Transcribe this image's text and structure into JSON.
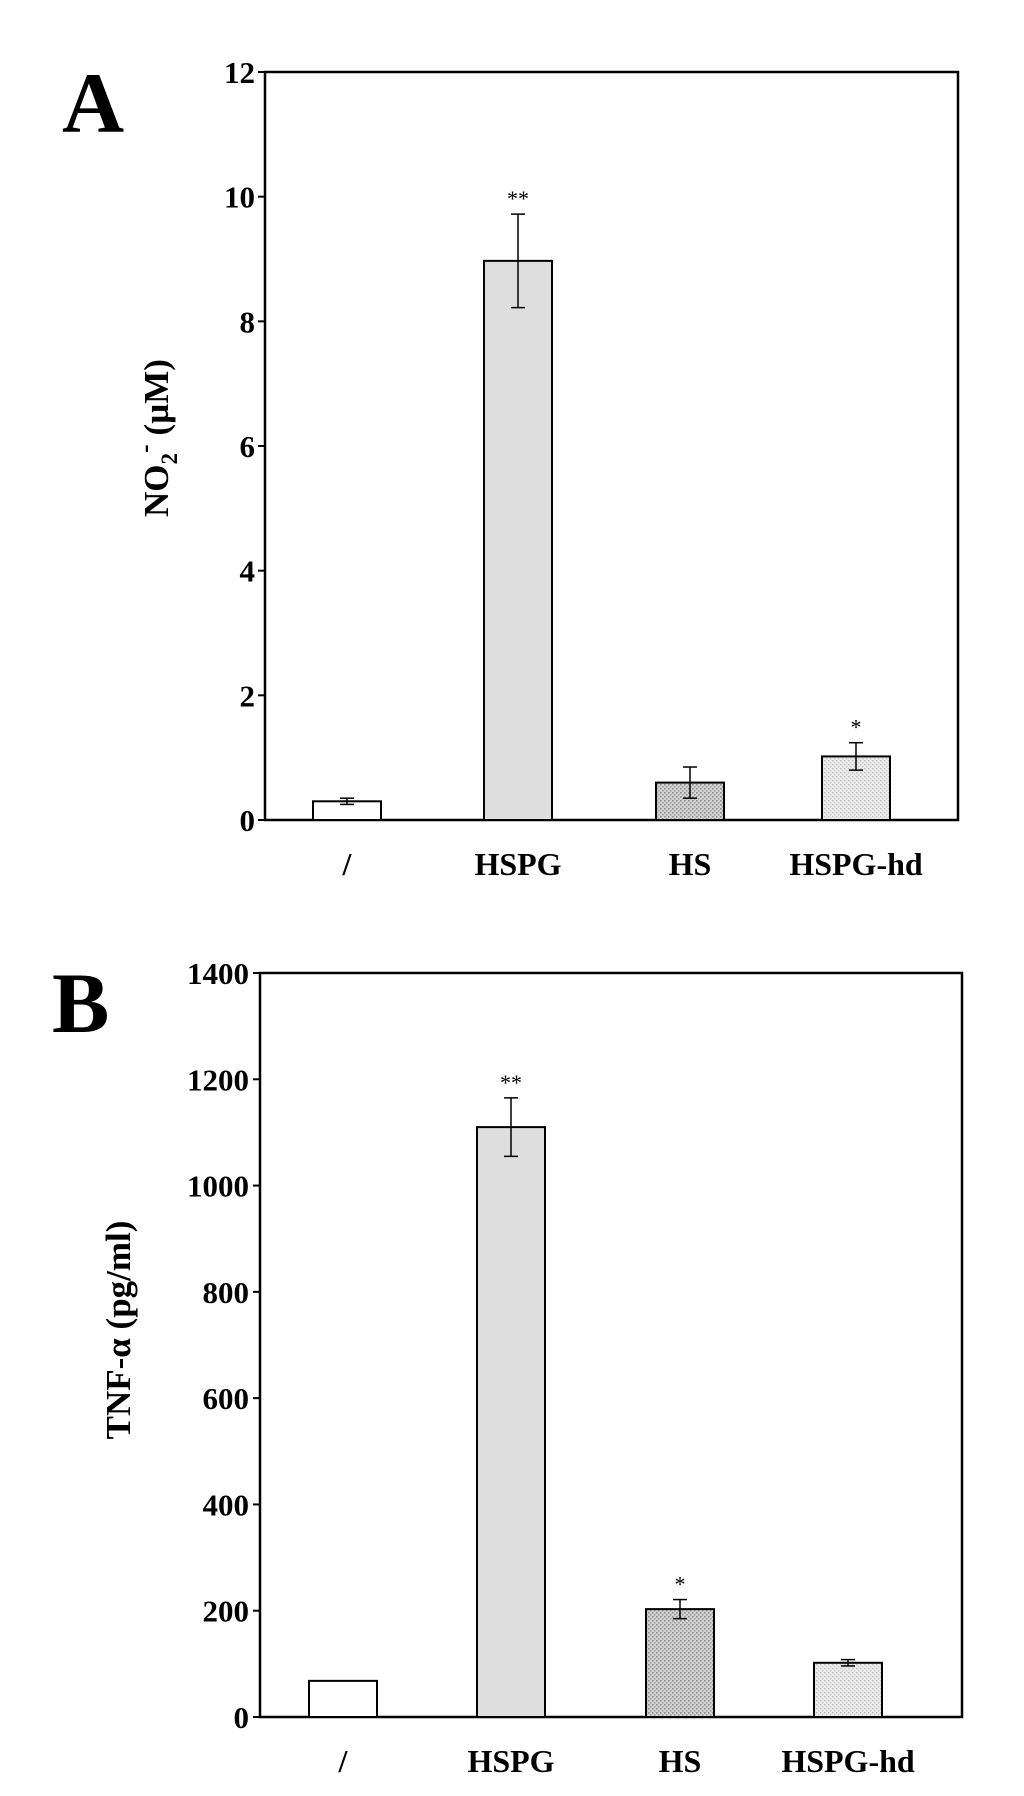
{
  "panels": [
    {
      "letter": "A",
      "chart_data": {
        "type": "bar",
        "title": "",
        "xlabel": "",
        "ylabel": "NO2- (µM)",
        "ylabel_parts": {
          "main": "NO",
          "sub": "2",
          "sup": "-",
          "unit": "(µM)"
        },
        "ylim": [
          0,
          12
        ],
        "yticks": [
          0,
          2,
          4,
          6,
          8,
          10,
          12
        ],
        "categories": [
          "/",
          "HSPG",
          "HS",
          "HSPG-hd"
        ],
        "values": [
          0.3,
          8.97,
          0.6,
          1.02
        ],
        "errors": [
          0.05,
          0.75,
          0.25,
          0.22
        ],
        "significance": [
          "",
          "**",
          "",
          "*"
        ],
        "bar_fills": [
          "#ffffff",
          "#dedede",
          "#cfcfcf",
          "#e6e6e6"
        ],
        "bar_patterns": [
          "none",
          "none",
          "dots",
          "dots-light"
        ],
        "grid": false,
        "legend": "none"
      }
    },
    {
      "letter": "B",
      "chart_data": {
        "type": "bar",
        "title": "",
        "xlabel": "",
        "ylabel": "TNF-α (pg/ml)",
        "ylim": [
          0,
          1400
        ],
        "yticks": [
          0,
          200,
          400,
          600,
          800,
          1000,
          1200,
          1400
        ],
        "categories": [
          "/",
          "HSPG",
          "HS",
          "HSPG-hd"
        ],
        "values": [
          68,
          1110,
          203,
          102
        ],
        "errors": [
          0,
          55,
          18,
          6
        ],
        "significance": [
          "",
          "**",
          "*",
          ""
        ],
        "bar_fills": [
          "#ffffff",
          "#dedede",
          "#cfcfcf",
          "#e6e6e6"
        ],
        "bar_patterns": [
          "none",
          "none",
          "dots",
          "dots-light"
        ],
        "grid": false,
        "legend": "none"
      }
    }
  ]
}
